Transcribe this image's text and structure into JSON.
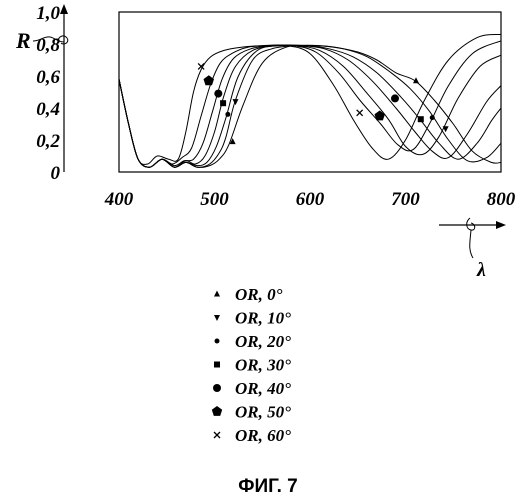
{
  "chart_data": {
    "type": "line",
    "xlabel": "λ",
    "ylabel": "R",
    "xlim": [
      400,
      800
    ],
    "ylim": [
      0,
      1.0
    ],
    "x_ticks": [
      "400",
      "500",
      "600",
      "700",
      "800"
    ],
    "y_ticks": [
      "0",
      "0,2",
      "0,4",
      "0,6",
      "0,8",
      "1,0"
    ],
    "caption": "ФИГ. 7",
    "series": [
      {
        "name": "OR, 0°",
        "marker": "triangle-up",
        "x": [
          400,
          410,
          420,
          432,
          445,
          458,
          470,
          482,
          495,
          505,
          515,
          530,
          550,
          575,
          600,
          625,
          650,
          670,
          690,
          710,
          730,
          750,
          770,
          790,
          800
        ],
        "y": [
          0.58,
          0.3,
          0.08,
          0.03,
          0.08,
          0.03,
          0.06,
          0.03,
          0.04,
          0.08,
          0.17,
          0.42,
          0.68,
          0.78,
          0.79,
          0.78,
          0.75,
          0.7,
          0.62,
          0.57,
          0.45,
          0.3,
          0.13,
          0.06,
          0.06
        ],
        "markers": [
          {
            "x": 519,
            "y": 0.19
          },
          {
            "x": 711,
            "y": 0.57
          }
        ]
      },
      {
        "name": "OR, 10°",
        "marker": "triangle-down",
        "x": [
          400,
          410,
          420,
          432,
          445,
          458,
          470,
          482,
          495,
          505,
          512,
          522,
          540,
          560,
          585,
          610,
          635,
          660,
          685,
          705,
          725,
          745,
          765,
          785,
          800
        ],
        "y": [
          0.58,
          0.3,
          0.08,
          0.03,
          0.08,
          0.03,
          0.06,
          0.03,
          0.05,
          0.12,
          0.22,
          0.45,
          0.7,
          0.77,
          0.79,
          0.79,
          0.77,
          0.72,
          0.62,
          0.52,
          0.38,
          0.2,
          0.07,
          0.09,
          0.18
        ],
        "markers": [
          {
            "x": 522,
            "y": 0.44
          },
          {
            "x": 742,
            "y": 0.27
          }
        ]
      },
      {
        "name": "OR, 20°",
        "marker": "dot",
        "x": [
          400,
          410,
          420,
          432,
          445,
          458,
          470,
          482,
          492,
          502,
          512,
          525,
          545,
          570,
          595,
          620,
          645,
          670,
          695,
          715,
          735,
          755,
          775,
          790,
          800
        ],
        "y": [
          0.58,
          0.3,
          0.08,
          0.03,
          0.08,
          0.03,
          0.06,
          0.04,
          0.06,
          0.16,
          0.34,
          0.6,
          0.76,
          0.79,
          0.79,
          0.77,
          0.72,
          0.62,
          0.47,
          0.33,
          0.18,
          0.08,
          0.18,
          0.32,
          0.4
        ],
        "markers": [
          {
            "x": 514,
            "y": 0.36
          },
          {
            "x": 728,
            "y": 0.34
          }
        ]
      },
      {
        "name": "OR, 30°",
        "marker": "square",
        "x": [
          400,
          410,
          420,
          432,
          445,
          458,
          470,
          480,
          490,
          500,
          510,
          522,
          540,
          565,
          590,
          615,
          640,
          665,
          690,
          710,
          728,
          745,
          765,
          785,
          800
        ],
        "y": [
          0.58,
          0.3,
          0.08,
          0.03,
          0.08,
          0.03,
          0.07,
          0.05,
          0.1,
          0.25,
          0.48,
          0.66,
          0.76,
          0.79,
          0.79,
          0.77,
          0.7,
          0.57,
          0.4,
          0.25,
          0.13,
          0.09,
          0.24,
          0.44,
          0.54
        ],
        "markers": [
          {
            "x": 509,
            "y": 0.43
          },
          {
            "x": 716,
            "y": 0.33
          }
        ]
      },
      {
        "name": "OR, 40°",
        "marker": "circle",
        "x": [
          400,
          410,
          420,
          432,
          445,
          458,
          468,
          478,
          488,
          498,
          508,
          520,
          538,
          560,
          585,
          610,
          635,
          660,
          682,
          700,
          718,
          735,
          755,
          778,
          800
        ],
        "y": [
          0.58,
          0.3,
          0.08,
          0.03,
          0.08,
          0.04,
          0.07,
          0.08,
          0.18,
          0.38,
          0.58,
          0.71,
          0.77,
          0.79,
          0.79,
          0.76,
          0.66,
          0.49,
          0.33,
          0.16,
          0.11,
          0.22,
          0.46,
          0.66,
          0.73
        ],
        "markers": [
          {
            "x": 504,
            "y": 0.49
          },
          {
            "x": 689,
            "y": 0.46
          }
        ]
      },
      {
        "name": "OR, 50°",
        "marker": "pentagon",
        "x": [
          400,
          410,
          420,
          432,
          445,
          456,
          466,
          476,
          486,
          496,
          506,
          518,
          535,
          558,
          582,
          606,
          630,
          652,
          674,
          692,
          708,
          725,
          745,
          770,
          800
        ],
        "y": [
          0.58,
          0.3,
          0.08,
          0.03,
          0.08,
          0.05,
          0.09,
          0.15,
          0.35,
          0.55,
          0.68,
          0.74,
          0.78,
          0.79,
          0.79,
          0.75,
          0.62,
          0.45,
          0.3,
          0.17,
          0.14,
          0.3,
          0.54,
          0.74,
          0.82
        ],
        "markers": [
          {
            "x": 494,
            "y": 0.57
          },
          {
            "x": 673,
            "y": 0.35
          }
        ]
      },
      {
        "name": "OR, 60°",
        "marker": "x",
        "x": [
          400,
          410,
          420,
          430,
          440,
          452,
          462,
          470,
          478,
          486,
          496,
          510,
          528,
          550,
          575,
          600,
          625,
          645,
          665,
          682,
          700,
          720,
          745,
          775,
          800
        ],
        "y": [
          0.58,
          0.3,
          0.08,
          0.05,
          0.1,
          0.08,
          0.08,
          0.25,
          0.5,
          0.64,
          0.72,
          0.76,
          0.78,
          0.79,
          0.79,
          0.74,
          0.54,
          0.33,
          0.15,
          0.08,
          0.2,
          0.45,
          0.7,
          0.84,
          0.86
        ],
        "markers": [
          {
            "x": 486,
            "y": 0.66
          },
          {
            "x": 652,
            "y": 0.37
          }
        ]
      }
    ]
  }
}
